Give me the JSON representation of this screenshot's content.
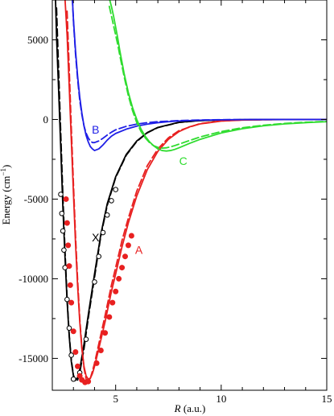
{
  "chart_data": {
    "type": "line",
    "xlabel": {
      "italic": "R",
      "rest": " (a.u.)"
    },
    "ylabel": {
      "main": "Energy (cm",
      "sup": "−1",
      "close": ")"
    },
    "xlim": [
      2,
      15
    ],
    "ylim": [
      -17000,
      7500
    ],
    "xticks": [
      {
        "value": 5,
        "label": "5"
      },
      {
        "value": 10,
        "label": "10"
      },
      {
        "value": 15,
        "label": "15"
      }
    ],
    "yticks": [
      {
        "value": 5000,
        "label": "5000"
      },
      {
        "value": 0,
        "label": "0"
      },
      {
        "value": -5000,
        "label": "-5000"
      },
      {
        "value": -10000,
        "label": "-10000"
      },
      {
        "value": -15000,
        "label": "-15000"
      }
    ],
    "grid": false,
    "series": [
      {
        "name": "X",
        "color": "#000000",
        "dashed": false,
        "x": [
          2.15,
          2.2,
          2.3,
          2.4,
          2.5,
          2.6,
          2.7,
          2.8,
          2.9,
          3.0,
          3.1,
          3.2,
          3.3,
          3.5,
          3.7,
          4.0,
          4.3,
          4.6,
          5.0,
          5.5,
          6.0,
          6.5,
          7.0,
          8.0,
          9.0,
          10.0,
          11.0,
          12.0,
          13.0,
          14.0,
          15.0
        ],
        "y": [
          7600,
          5200,
          1800,
          -1800,
          -5500,
          -8600,
          -11400,
          -13600,
          -15200,
          -16100,
          -16350,
          -16200,
          -15700,
          -14100,
          -12300,
          -9700,
          -7200,
          -5300,
          -3600,
          -2200,
          -1350,
          -820,
          -500,
          -180,
          -70,
          -30,
          -14,
          -7,
          -3,
          -1,
          0
        ]
      },
      {
        "name": "",
        "color": "#000000",
        "dashed": true,
        "x": [
          2.2,
          2.3,
          2.4,
          2.5,
          2.6,
          2.7,
          2.8,
          2.9,
          3.0,
          3.1,
          3.2,
          3.3,
          3.5,
          3.7,
          4.0,
          4.3,
          4.6,
          5.0,
          5.5,
          6.0,
          6.5,
          7.0,
          8.0,
          9.0,
          10.0,
          11.0,
          12.0,
          13.0,
          14.0,
          15.0
        ],
        "y": [
          7000,
          3000,
          -900,
          -4800,
          -8200,
          -11200,
          -13500,
          -15100,
          -16050,
          -16450,
          -16350,
          -15900,
          -14400,
          -12500,
          -9900,
          -7300,
          -5400,
          -3650,
          -2250,
          -1380,
          -840,
          -510,
          -185,
          -72,
          -30,
          -14,
          -7,
          -3,
          -1,
          0
        ]
      },
      {
        "name": "X-markers",
        "color": "#000000",
        "marker": "open-circle",
        "x": [
          2.4,
          2.45,
          2.5,
          2.55,
          2.6,
          2.7,
          2.8,
          2.9,
          3.0,
          3.3,
          3.6,
          4.0,
          4.2,
          4.4,
          4.6,
          4.8,
          5.0
        ],
        "y": [
          -4700,
          -5900,
          -7000,
          -8200,
          -9300,
          -11300,
          -13100,
          -14800,
          -16300,
          -15900,
          -13800,
          -10200,
          -8600,
          -7100,
          -6000,
          -5100,
          -4400
        ]
      },
      {
        "name": "A",
        "color": "#e82020",
        "dashed": false,
        "x": [
          2.6,
          2.7,
          2.8,
          2.9,
          3.0,
          3.1,
          3.2,
          3.3,
          3.4,
          3.5,
          3.6,
          3.7,
          3.8,
          3.9,
          4.0,
          4.2,
          4.5,
          4.8,
          5.0,
          5.3,
          5.6,
          6.0,
          6.5,
          7.0,
          7.5,
          8.0,
          8.5,
          9.0,
          10.0,
          11.0,
          12.0,
          13.0,
          14.0,
          15.0
        ],
        "y": [
          7600,
          5300,
          2100,
          -1300,
          -4600,
          -7800,
          -10500,
          -12700,
          -14400,
          -15500,
          -16100,
          -16300,
          -16250,
          -15950,
          -15500,
          -14400,
          -12700,
          -10800,
          -9700,
          -8000,
          -6500,
          -4800,
          -3150,
          -2000,
          -1250,
          -760,
          -460,
          -280,
          -100,
          -40,
          -16,
          -7,
          -3,
          0
        ]
      },
      {
        "name": "",
        "color": "#e82020",
        "dashed": true,
        "x": [
          2.7,
          2.8,
          2.9,
          3.0,
          3.1,
          3.2,
          3.3,
          3.4,
          3.5,
          3.6,
          3.7,
          3.8,
          3.9,
          4.0,
          4.2,
          4.5,
          4.8,
          5.0,
          5.3,
          5.6,
          6.0,
          6.5,
          7.0,
          7.5,
          8.0,
          9.0,
          10.0,
          11.0,
          12.0,
          13.0,
          14.0,
          15.0
        ],
        "y": [
          6800,
          3200,
          -500,
          -4000,
          -7300,
          -10100,
          -12500,
          -14300,
          -15600,
          -16300,
          -16500,
          -16250,
          -15800,
          -15300,
          -14100,
          -12300,
          -10400,
          -9300,
          -7600,
          -6200,
          -4500,
          -2900,
          -1850,
          -1150,
          -700,
          -260,
          -90,
          -35,
          -14,
          -6,
          -2,
          0
        ]
      },
      {
        "name": "A-markers",
        "color": "#e82020",
        "marker": "filled-circle",
        "x": [
          2.65,
          2.7,
          2.75,
          2.8,
          2.85,
          2.9,
          3.0,
          3.1,
          3.2,
          3.3,
          3.4,
          3.55,
          3.7,
          4.1,
          4.3,
          4.5,
          4.7,
          4.85,
          5.0,
          5.15,
          5.3,
          5.45,
          5.6,
          5.75
        ],
        "y": [
          -5000,
          -6500,
          -7900,
          -9200,
          -10400,
          -11500,
          -13300,
          -14600,
          -15500,
          -16100,
          -16350,
          -16500,
          -16450,
          -15300,
          -14500,
          -13400,
          -12400,
          -11500,
          -10800,
          -10000,
          -9300,
          -8600,
          -7900,
          -7300
        ]
      },
      {
        "name": "B",
        "color": "#1f1fe6",
        "dashed": false,
        "x": [
          2.95,
          3.0,
          3.1,
          3.2,
          3.3,
          3.4,
          3.5,
          3.6,
          3.7,
          3.8,
          3.9,
          4.0,
          4.2,
          4.4,
          4.6,
          4.8,
          5.0,
          5.5,
          6.0,
          6.5,
          7.0,
          7.5,
          8.0,
          9.0,
          10.0,
          11.0,
          12.0,
          13.0,
          14.0,
          15.0
        ],
        "y": [
          7600,
          6300,
          4300,
          2700,
          1400,
          400,
          -400,
          -1000,
          -1400,
          -1700,
          -1850,
          -1950,
          -1850,
          -1600,
          -1300,
          -1050,
          -880,
          -610,
          -420,
          -290,
          -200,
          -140,
          -95,
          -45,
          -20,
          -9,
          -4,
          -2,
          -1,
          0
        ]
      },
      {
        "name": "",
        "color": "#1f1fe6",
        "dashed": true,
        "x": [
          2.95,
          3.0,
          3.1,
          3.2,
          3.3,
          3.4,
          3.5,
          3.6,
          3.7,
          3.8,
          3.9,
          4.0,
          4.2,
          4.4,
          4.6,
          4.8,
          5.0,
          5.5,
          6.0,
          6.5,
          7.0,
          8.0,
          9.0,
          10.0,
          11.0,
          12.0,
          13.0,
          14.0,
          15.0
        ],
        "y": [
          7600,
          6200,
          4100,
          2500,
          1200,
          300,
          -400,
          -850,
          -1150,
          -1350,
          -1450,
          -1450,
          -1350,
          -1180,
          -980,
          -800,
          -650,
          -430,
          -290,
          -200,
          -140,
          -70,
          -35,
          -15,
          -7,
          -3,
          -1,
          0,
          0
        ]
      },
      {
        "name": "C",
        "color": "#2fdc2f",
        "dashed": false,
        "x": [
          4.7,
          4.8,
          4.9,
          5.0,
          5.1,
          5.2,
          5.4,
          5.6,
          5.8,
          6.0,
          6.2,
          6.4,
          6.6,
          6.8,
          7.0,
          7.2,
          7.4,
          7.6,
          7.8,
          8.0,
          8.5,
          9.0,
          10.0,
          11.0,
          12.0,
          13.0,
          14.0,
          15.0
        ],
        "y": [
          7600,
          7100,
          6500,
          5800,
          5100,
          4300,
          2900,
          1700,
          750,
          0,
          -600,
          -1050,
          -1400,
          -1650,
          -1850,
          -1950,
          -1980,
          -1950,
          -1880,
          -1780,
          -1500,
          -1250,
          -850,
          -580,
          -400,
          -280,
          -200,
          -140
        ]
      },
      {
        "name": "",
        "color": "#2fdc2f",
        "dashed": true,
        "x": [
          4.7,
          4.8,
          4.9,
          5.0,
          5.1,
          5.2,
          5.4,
          5.6,
          5.8,
          6.0,
          6.2,
          6.4,
          6.6,
          6.8,
          7.0,
          7.2,
          7.4,
          7.6,
          7.8,
          8.0,
          8.5,
          9.0,
          10.0,
          11.0,
          12.0,
          13.0,
          14.0,
          15.0
        ],
        "y": [
          7100,
          6500,
          5900,
          5300,
          4700,
          4000,
          2700,
          1500,
          550,
          -200,
          -750,
          -1150,
          -1450,
          -1650,
          -1750,
          -1800,
          -1780,
          -1720,
          -1640,
          -1550,
          -1320,
          -1100,
          -760,
          -520,
          -360,
          -250,
          -175,
          -120
        ]
      }
    ],
    "annotations": [
      {
        "text": "B",
        "color": "#1f1fe6",
        "x": 4.05,
        "y": -880
      },
      {
        "text": "C",
        "color": "#2fdc2f",
        "x": 8.2,
        "y": -2850
      },
      {
        "text": "X",
        "color": "#000000",
        "x": 4.05,
        "y": -7650
      },
      {
        "text": "A",
        "color": "#e82020",
        "x": 6.1,
        "y": -8450
      }
    ]
  }
}
